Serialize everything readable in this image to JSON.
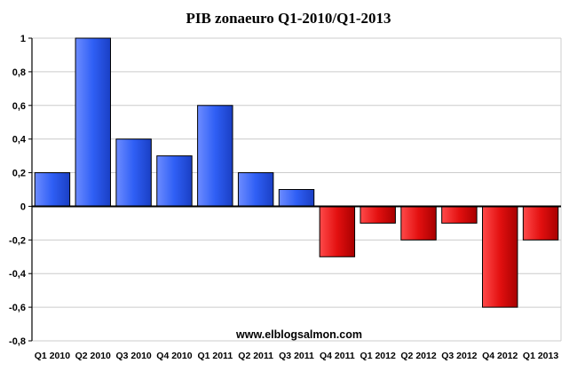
{
  "chart_data": {
    "type": "bar",
    "title": "PIB zonaeuro Q1-2010/Q1-2013",
    "xlabel": "",
    "ylabel": "",
    "categories": [
      "Q1 2010",
      "Q2 2010",
      "Q3 2010",
      "Q4 2010",
      "Q1 2011",
      "Q2 2011",
      "Q3 2011",
      "Q4 2011",
      "Q1 2012",
      "Q2 2012",
      "Q3 2012",
      "Q4 2012",
      "Q1 2013"
    ],
    "values": [
      0.2,
      1.0,
      0.4,
      0.3,
      0.6,
      0.2,
      0.1,
      -0.3,
      -0.1,
      -0.2,
      -0.1,
      -0.6,
      -0.2
    ],
    "ylim": [
      -0.8,
      1.0
    ],
    "yticks": [
      1,
      0.8,
      0.6,
      0.4,
      0.2,
      0,
      -0.2,
      -0.4,
      -0.6,
      -0.8
    ],
    "ytick_labels": [
      "1",
      "0,8",
      "0,6",
      "0,4",
      "0,2",
      "0",
      "-0,2",
      "-0,4",
      "-0,6",
      "-0,8"
    ],
    "grid": true,
    "legend": "none",
    "colors": {
      "positive": "#3a64f0",
      "negative": "#e01010",
      "axis": "#000000",
      "grid": "#cccccc"
    },
    "watermark": "www.elblogsalmon.com"
  }
}
